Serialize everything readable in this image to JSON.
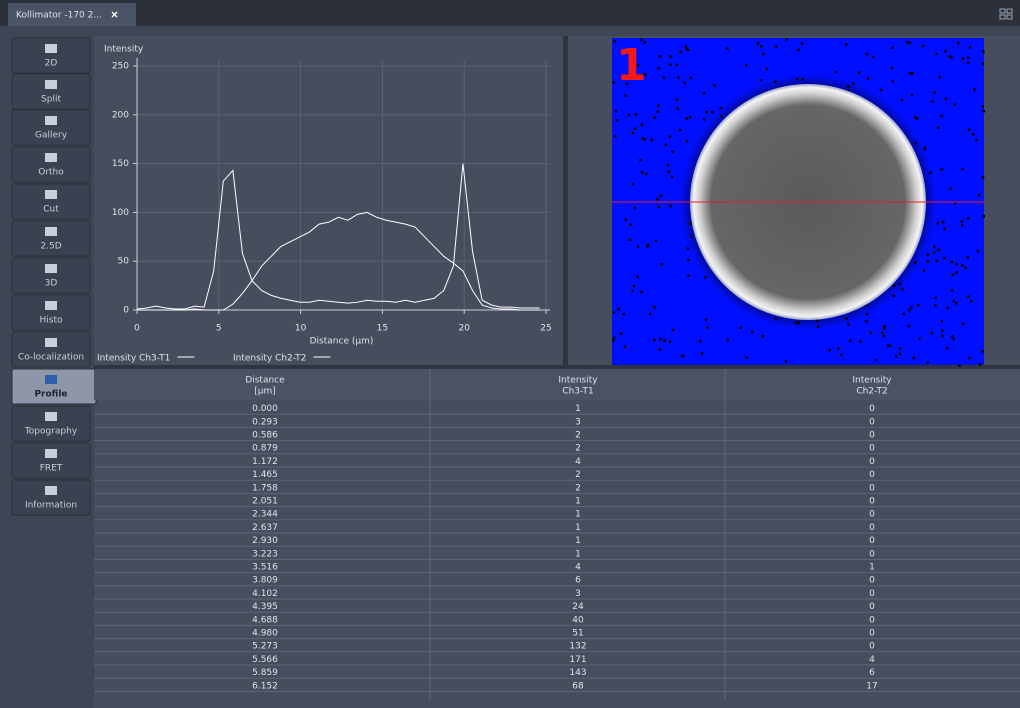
{
  "tab": {
    "title": "Kollimator -170 2..."
  },
  "sidebar": {
    "buttons": [
      "2D",
      "Split",
      "Gallery",
      "Ortho",
      "Cut",
      "2.5D",
      "3D",
      "Histo",
      "Co-localization",
      "Profile",
      "Topography",
      "FRET",
      "Information"
    ],
    "active": 9
  },
  "chart_data": {
    "type": "line",
    "y_label": "Intensity",
    "x_label": "Distance (µm)",
    "x": [
      0,
      0.586,
      1.172,
      1.758,
      2.344,
      2.93,
      3.516,
      4.102,
      4.688,
      5.274,
      5.86,
      6.446,
      7.032,
      7.618,
      8.204,
      8.79,
      9.376,
      9.962,
      10.548,
      11.134,
      11.72,
      12.306,
      12.892,
      13.478,
      14.064,
      14.65,
      15.236,
      15.822,
      16.408,
      16.994,
      17.58,
      18.166,
      18.752,
      19.338,
      19.924,
      20.51,
      21.096,
      21.682,
      22.268,
      22.854,
      23.44,
      24.026,
      24.612
    ],
    "series": [
      {
        "name": "Intensity Ch3-T1",
        "color": "#ffffff",
        "values": [
          1,
          2,
          4,
          2,
          1,
          1,
          4,
          3,
          40,
          132,
          143,
          58,
          30,
          20,
          15,
          12,
          10,
          8,
          8,
          10,
          9,
          8,
          7,
          8,
          10,
          9,
          9,
          8,
          10,
          8,
          10,
          12,
          20,
          45,
          150,
          60,
          10,
          5,
          3,
          3,
          2,
          2,
          2
        ]
      },
      {
        "name": "Intensity Ch2-T2",
        "color": "#ffffff",
        "values": [
          0,
          0,
          0,
          0,
          0,
          0,
          1,
          0,
          0,
          0,
          6,
          17,
          30,
          45,
          55,
          65,
          70,
          75,
          80,
          88,
          90,
          95,
          92,
          98,
          100,
          95,
          92,
          90,
          88,
          85,
          75,
          65,
          55,
          48,
          40,
          20,
          5,
          2,
          1,
          1,
          0,
          0,
          0
        ]
      }
    ],
    "xlim": [
      0,
      25
    ],
    "xticks": [
      0,
      5,
      10,
      15,
      20,
      25
    ],
    "ylim": [
      0,
      250
    ],
    "yticks": [
      0,
      50,
      100,
      150,
      200,
      250
    ],
    "grid": true
  },
  "image": {
    "label": "1"
  },
  "table": {
    "headers": [
      [
        "Distance",
        "[µm]"
      ],
      [
        "Intensity",
        "Ch3-T1"
      ],
      [
        "Intensity",
        "Ch2-T2"
      ]
    ],
    "rows": [
      [
        "0.000",
        "1",
        "0"
      ],
      [
        "0.293",
        "3",
        "0"
      ],
      [
        "0.586",
        "2",
        "0"
      ],
      [
        "0.879",
        "2",
        "0"
      ],
      [
        "1.172",
        "4",
        "0"
      ],
      [
        "1.465",
        "2",
        "0"
      ],
      [
        "1.758",
        "2",
        "0"
      ],
      [
        "2.051",
        "1",
        "0"
      ],
      [
        "2.344",
        "1",
        "0"
      ],
      [
        "2.637",
        "1",
        "0"
      ],
      [
        "2.930",
        "1",
        "0"
      ],
      [
        "3.223",
        "1",
        "0"
      ],
      [
        "3.516",
        "4",
        "1"
      ],
      [
        "3.809",
        "6",
        "0"
      ],
      [
        "4.102",
        "3",
        "0"
      ],
      [
        "4.395",
        "24",
        "0"
      ],
      [
        "4.688",
        "40",
        "0"
      ],
      [
        "4.980",
        "51",
        "0"
      ],
      [
        "5.273",
        "132",
        "0"
      ],
      [
        "5.566",
        "171",
        "4"
      ],
      [
        "5.859",
        "143",
        "6"
      ],
      [
        "6.152",
        "68",
        "17"
      ]
    ]
  }
}
